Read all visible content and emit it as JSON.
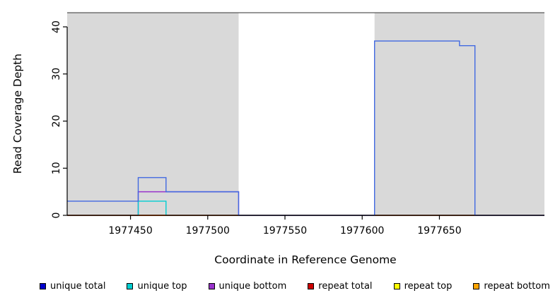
{
  "chart_data": {
    "type": "line",
    "step": true,
    "title": "",
    "xlabel": "Coordinate in Reference Genome",
    "ylabel": "Read Coverage Depth",
    "xlim": [
      1977409,
      1977718
    ],
    "ylim": [
      0,
      43
    ],
    "xticks": [
      1977450,
      1977500,
      1977550,
      1977600,
      1977650
    ],
    "yticks": [
      0,
      10,
      20,
      30,
      40
    ],
    "grid": false,
    "background": "#ffffff",
    "shaded_regions": [
      {
        "x0": 1977409,
        "x1": 1977520,
        "color": "#d9d9d9"
      },
      {
        "x0": 1977608,
        "x1": 1977718,
        "color": "#d9d9d9"
      }
    ],
    "top_line": {
      "x0": 1977409,
      "x1": 1977718,
      "y": 43,
      "color": "#595959"
    },
    "series": [
      {
        "name": "unique bottom",
        "color": "#9932cc",
        "points": [
          [
            1977409,
            0
          ],
          [
            1977455,
            5
          ],
          [
            1977520,
            0
          ],
          [
            1977718,
            0
          ]
        ]
      },
      {
        "name": "repeat top",
        "color": "#ffff00",
        "points": [
          [
            1977409,
            0
          ],
          [
            1977718,
            0
          ]
        ]
      },
      {
        "name": "repeat bottom",
        "color": "#ffa500",
        "points": [
          [
            1977409,
            0
          ],
          [
            1977718,
            0
          ]
        ]
      },
      {
        "name": "unique top",
        "color": "#00ced1",
        "points": [
          [
            1977409,
            0
          ],
          [
            1977455,
            3
          ],
          [
            1977473,
            0
          ],
          [
            1977718,
            0
          ]
        ]
      },
      {
        "name": "repeat total",
        "color": "#cd0000",
        "points": [
          [
            1977409,
            0
          ],
          [
            1977718,
            0
          ]
        ]
      },
      {
        "name": "unique total",
        "color": "#4169e1",
        "points": [
          [
            1977409,
            3
          ],
          [
            1977455,
            8
          ],
          [
            1977473,
            5
          ],
          [
            1977520,
            0
          ],
          [
            1977608,
            37
          ],
          [
            1977663,
            36
          ],
          [
            1977673,
            0
          ],
          [
            1977718,
            0
          ]
        ]
      }
    ],
    "legend": [
      {
        "label": "unique total",
        "color": "#0000cd"
      },
      {
        "label": "unique top",
        "color": "#00ced1"
      },
      {
        "label": "unique bottom",
        "color": "#9932cc"
      },
      {
        "label": "repeat total",
        "color": "#cd0000"
      },
      {
        "label": "repeat top",
        "color": "#ffff00"
      },
      {
        "label": "repeat bottom",
        "color": "#ffa500"
      }
    ]
  }
}
